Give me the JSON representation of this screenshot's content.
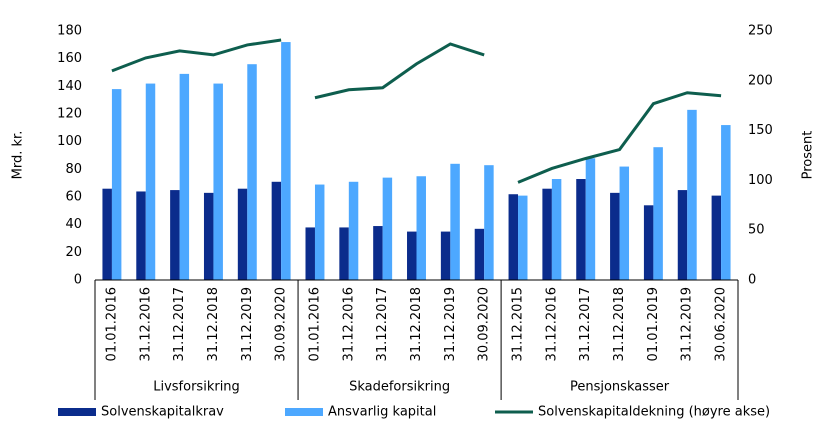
{
  "chart_data": {
    "type": "bar-line",
    "groups": [
      {
        "name": "Livsforsikring",
        "categories": [
          "01.01.2016",
          "31.12.2016",
          "31.12.2017",
          "31.12.2018",
          "31.12.2019",
          "30.09.2020"
        ]
      },
      {
        "name": "Skadeforsikring",
        "categories": [
          "01.01.2016",
          "31.12.2016",
          "31.12.2017",
          "31.12.2018",
          "31.12.2019",
          "30.09.2020"
        ]
      },
      {
        "name": "Pensjonskasser",
        "categories": [
          "31.12.2015",
          "31.12.2016",
          "31.12.2017",
          "31.12.2018",
          "01.01.2019",
          "31.12.2019",
          "30.06.2020"
        ]
      }
    ],
    "y_label": "Mrd. kr.",
    "y2_label": "Prosent",
    "ylim": [
      0,
      180
    ],
    "yticks": [
      0,
      20,
      40,
      60,
      80,
      100,
      120,
      140,
      160,
      180
    ],
    "y2lim": [
      0,
      250
    ],
    "y2ticks": [
      0,
      50,
      100,
      150,
      200,
      250
    ],
    "series": [
      {
        "name": "Solvenskapitalkrav",
        "type": "bar",
        "color": "#0b2c8c",
        "values": [
          66,
          64,
          65,
          63,
          66,
          71,
          38,
          38,
          39,
          35,
          35,
          37,
          62,
          66,
          73,
          63,
          54,
          65,
          61
        ]
      },
      {
        "name": "Ansvarlig kapital",
        "type": "bar",
        "color": "#4da8ff",
        "values": [
          138,
          142,
          149,
          142,
          156,
          172,
          69,
          71,
          74,
          75,
          84,
          83,
          61,
          73,
          88,
          82,
          96,
          123,
          112
        ]
      },
      {
        "name": "Solvenskapitaldekning (høyre akse)",
        "type": "line",
        "axis": "y2",
        "color": "#0e5e4e",
        "values": [
          210,
          223,
          230,
          226,
          236,
          241,
          183,
          191,
          193,
          217,
          237,
          226,
          98,
          112,
          122,
          131,
          177,
          188,
          185
        ]
      }
    ]
  }
}
